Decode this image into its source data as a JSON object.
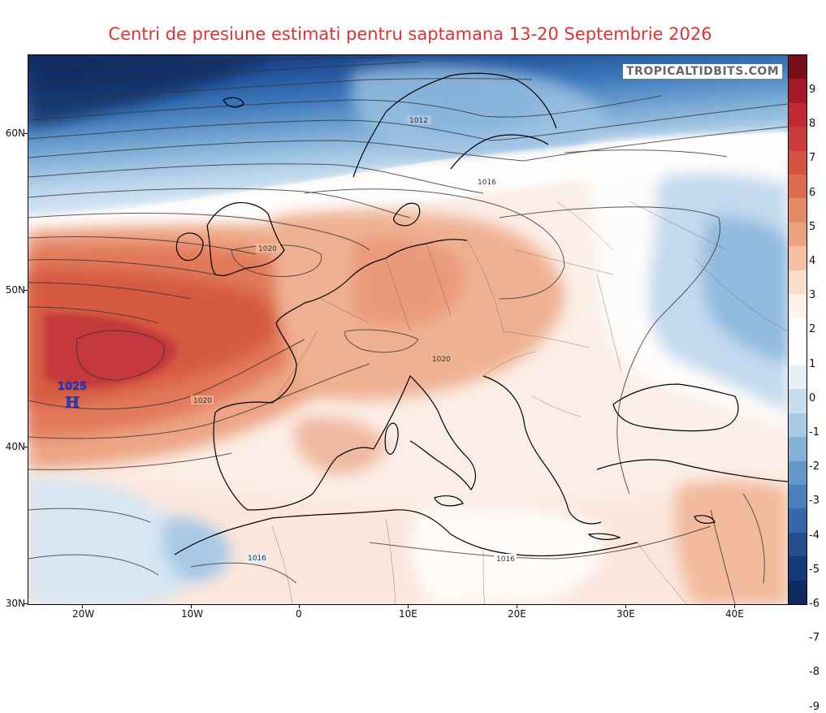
{
  "title": "Centri de presiune estimati pentru saptamana 13-20 Septembrie 2026",
  "watermark": "TROPICALTIDBITS.COM",
  "high_center": {
    "value": "1025",
    "letter": "H",
    "color": "#1f3fd6"
  },
  "isobar_labels": [
    "1012",
    "1016",
    "1020",
    "1020",
    "1020",
    "1016",
    "1016"
  ],
  "lat_labels": [
    "60N",
    "50N",
    "40N",
    "30N"
  ],
  "lon_labels": [
    "20W",
    "10W",
    "0",
    "10E",
    "20E",
    "30E",
    "40E"
  ],
  "colorbar": {
    "labels": [
      "9",
      "8",
      "7",
      "6",
      "5",
      "4",
      "3",
      "2",
      "1",
      "0",
      "-1",
      "-2",
      "-3",
      "-4",
      "-5",
      "-6",
      "-7",
      "-8",
      "-9"
    ],
    "colors": [
      "#7a0f1c",
      "#a5192b",
      "#c12a33",
      "#cc3b3b",
      "#d4533f",
      "#dc6c4d",
      "#e58a66",
      "#eca480",
      "#f3c0a4",
      "#f8dccc",
      "#fdf1ea",
      "#ffffff",
      "#ffffff",
      "#e3eef7",
      "#c7dced",
      "#a9c9e4",
      "#87b2d8",
      "#6597c9",
      "#4a7fbb",
      "#3667a8",
      "#254f91",
      "#173a79",
      "#0e2a60"
    ]
  }
}
